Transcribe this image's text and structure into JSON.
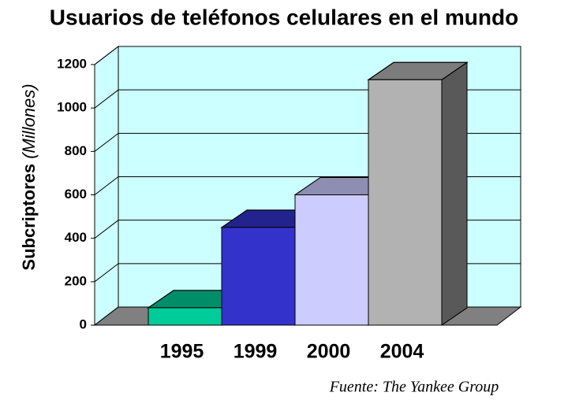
{
  "chart_data": {
    "type": "bar3d",
    "title": "Usuarios de teléfonos celulares en el mundo",
    "y_label": "Subcriptores",
    "y_label_unit": "(Millones)",
    "source": "Fuente: The Yankee Group",
    "categories": [
      "1995",
      "1999",
      "2000",
      "2004"
    ],
    "values": [
      80,
      450,
      600,
      1130
    ],
    "colors": [
      "#00cc99",
      "#3333cc",
      "#ccccff",
      "#b2b2b2"
    ],
    "ylim": [
      0,
      1200
    ],
    "yticks": [
      0,
      200,
      400,
      600,
      800,
      1000,
      1200
    ],
    "grid": true,
    "wall_color": "#ccffff"
  }
}
